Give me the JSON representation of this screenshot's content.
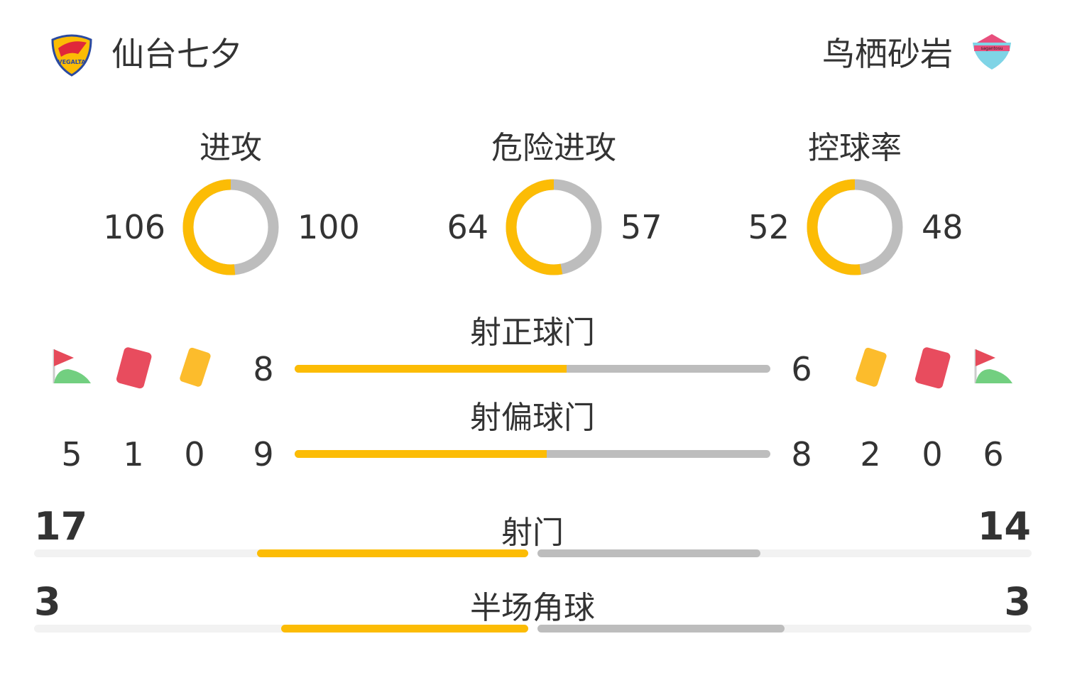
{
  "home": {
    "name": "仙台七夕",
    "logo_text": "VEGALTA"
  },
  "away": {
    "name": "鸟栖砂岩",
    "logo_text": "sagantosu"
  },
  "colors": {
    "home": "#fcbc05",
    "away": "#bdbdbd"
  },
  "donuts": [
    {
      "label": "进攻",
      "home": 106,
      "away": 100
    },
    {
      "label": "危险进攻",
      "home": 64,
      "away": 57
    },
    {
      "label": "控球率",
      "home": 52,
      "away": 48
    }
  ],
  "bars": [
    {
      "label": "射正球门",
      "home": 8,
      "away": 6
    },
    {
      "label": "射偏球门",
      "home": 9,
      "away": 8
    }
  ],
  "cards": {
    "home": {
      "corners": 5,
      "red": 1,
      "yellow": 0
    },
    "away": {
      "yellow": 2,
      "red": 0,
      "corners": 6
    }
  },
  "wide_bars": [
    {
      "label": "射门",
      "home": 17,
      "away": 14
    },
    {
      "label": "半场角球",
      "home": 3,
      "away": 3
    }
  ]
}
